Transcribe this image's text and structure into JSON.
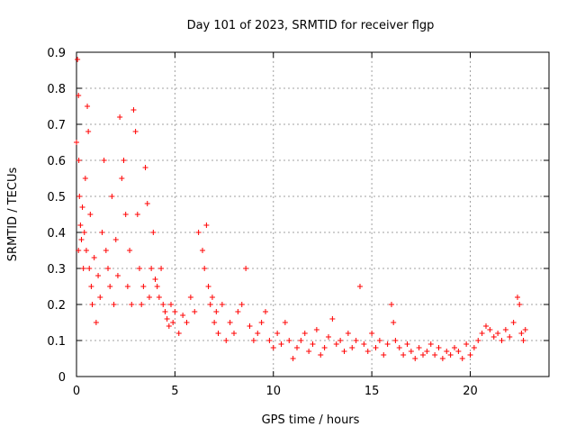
{
  "chart_data": {
    "type": "scatter",
    "title": "Day 101 of 2023, SRMTID for receiver flgp",
    "xlabel": "GPS time / hours",
    "ylabel": "SRMTID / TECUs",
    "xlim": [
      0,
      24
    ],
    "ylim": [
      0,
      0.9
    ],
    "grid": true,
    "marker": "plus",
    "x_ticks": [
      0,
      5,
      10,
      15,
      20
    ],
    "x_tick_labels": [
      "0",
      "5",
      "10",
      "15",
      "20"
    ],
    "y_ticks": [
      0,
      0.1,
      0.2,
      0.3,
      0.4,
      0.5,
      0.6,
      0.7,
      0.8,
      0.9
    ],
    "y_tick_labels": [
      "0",
      "0.1",
      "0.2",
      "0.3",
      "0.4",
      "0.5",
      "0.6",
      "0.7",
      "0.8",
      "0.9"
    ],
    "series": [
      {
        "name": "SRMTID",
        "color": "#ff0000",
        "x": [
          0.0,
          0.05,
          0.1,
          0.1,
          0.12,
          0.15,
          0.2,
          0.25,
          0.3,
          0.35,
          0.4,
          0.45,
          0.5,
          0.55,
          0.6,
          0.65,
          0.7,
          0.75,
          0.8,
          0.9,
          1.0,
          1.1,
          1.2,
          1.3,
          1.4,
          1.5,
          1.6,
          1.7,
          1.8,
          1.9,
          2.0,
          2.1,
          2.2,
          2.3,
          2.4,
          2.5,
          2.6,
          2.7,
          2.8,
          2.9,
          3.0,
          3.1,
          3.2,
          3.3,
          3.4,
          3.5,
          3.6,
          3.7,
          3.8,
          3.9,
          4.0,
          4.1,
          4.2,
          4.3,
          4.4,
          4.5,
          4.6,
          4.7,
          4.8,
          4.9,
          5.0,
          5.2,
          5.4,
          5.6,
          5.8,
          6.0,
          6.2,
          6.4,
          6.5,
          6.6,
          6.7,
          6.8,
          6.9,
          7.0,
          7.1,
          7.2,
          7.4,
          7.6,
          7.8,
          8.0,
          8.2,
          8.4,
          8.6,
          8.8,
          9.0,
          9.2,
          9.4,
          9.6,
          9.8,
          10.0,
          10.2,
          10.4,
          10.6,
          10.8,
          11.0,
          11.2,
          11.4,
          11.6,
          11.8,
          12.0,
          12.2,
          12.4,
          12.6,
          12.8,
          13.0,
          13.2,
          13.4,
          13.6,
          13.8,
          14.0,
          14.2,
          14.4,
          14.6,
          14.8,
          15.0,
          15.2,
          15.4,
          15.6,
          15.8,
          16.0,
          16.1,
          16.2,
          16.4,
          16.6,
          16.8,
          17.0,
          17.2,
          17.4,
          17.6,
          17.8,
          18.0,
          18.2,
          18.4,
          18.6,
          18.8,
          19.0,
          19.2,
          19.4,
          19.6,
          19.8,
          20.0,
          20.2,
          20.4,
          20.6,
          20.8,
          21.0,
          21.2,
          21.4,
          21.6,
          21.8,
          22.0,
          22.2,
          22.4,
          22.5,
          22.6,
          22.7,
          22.8
        ],
        "values": [
          0.65,
          0.88,
          0.78,
          0.35,
          0.6,
          0.5,
          0.42,
          0.38,
          0.47,
          0.3,
          0.4,
          0.55,
          0.35,
          0.75,
          0.68,
          0.3,
          0.45,
          0.25,
          0.2,
          0.33,
          0.15,
          0.28,
          0.22,
          0.4,
          0.6,
          0.35,
          0.3,
          0.25,
          0.5,
          0.2,
          0.38,
          0.28,
          0.72,
          0.55,
          0.6,
          0.45,
          0.25,
          0.35,
          0.2,
          0.74,
          0.68,
          0.45,
          0.3,
          0.2,
          0.25,
          0.58,
          0.48,
          0.22,
          0.3,
          0.4,
          0.27,
          0.25,
          0.22,
          0.3,
          0.2,
          0.18,
          0.16,
          0.14,
          0.2,
          0.15,
          0.18,
          0.12,
          0.17,
          0.15,
          0.22,
          0.18,
          0.4,
          0.35,
          0.3,
          0.42,
          0.25,
          0.2,
          0.22,
          0.15,
          0.18,
          0.12,
          0.2,
          0.1,
          0.15,
          0.12,
          0.18,
          0.2,
          0.3,
          0.14,
          0.1,
          0.12,
          0.15,
          0.18,
          0.1,
          0.08,
          0.12,
          0.09,
          0.15,
          0.1,
          0.05,
          0.08,
          0.1,
          0.12,
          0.07,
          0.09,
          0.13,
          0.06,
          0.08,
          0.11,
          0.16,
          0.09,
          0.1,
          0.07,
          0.12,
          0.08,
          0.1,
          0.25,
          0.09,
          0.07,
          0.12,
          0.08,
          0.1,
          0.06,
          0.09,
          0.2,
          0.15,
          0.1,
          0.08,
          0.06,
          0.09,
          0.07,
          0.05,
          0.08,
          0.06,
          0.07,
          0.09,
          0.06,
          0.08,
          0.05,
          0.07,
          0.06,
          0.08,
          0.07,
          0.05,
          0.09,
          0.06,
          0.08,
          0.1,
          0.12,
          0.14,
          0.13,
          0.11,
          0.12,
          0.1,
          0.13,
          0.11,
          0.15,
          0.22,
          0.2,
          0.12,
          0.1,
          0.13
        ]
      }
    ]
  }
}
